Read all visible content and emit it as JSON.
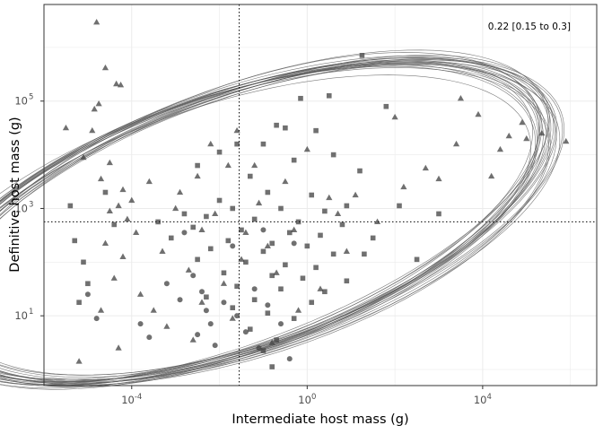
{
  "chart_data": {
    "type": "scatter",
    "title": "",
    "xlabel": "Intermediate host mass (g)",
    "ylabel": "Definitive host mass (g)",
    "x_scale": "log10",
    "y_scale": "log10",
    "xlim_log10": [
      -6.0,
      6.6
    ],
    "ylim_log10": [
      -0.3,
      6.8
    ],
    "x_ticks": [
      {
        "log10": -4,
        "base": "10",
        "exp": "-4"
      },
      {
        "log10": 0,
        "base": "10",
        "exp": "0"
      },
      {
        "log10": 4,
        "base": "10",
        "exp": "4"
      }
    ],
    "y_ticks": [
      {
        "log10": 1,
        "base": "10",
        "exp": "1"
      },
      {
        "log10": 3,
        "base": "10",
        "exp": "3"
      },
      {
        "log10": 5,
        "base": "10",
        "exp": "5"
      }
    ],
    "grid": true,
    "annotation": "0.22 [0.15 to 0.3]",
    "annotation_position": "top-right",
    "ref_lines": {
      "x_log10": -1.55,
      "y_log10": 2.75,
      "style": "dotted"
    },
    "marker_colors": {
      "points": "#404040",
      "ellipses": "#595959",
      "axis_text": "#4d4d4d",
      "grid": "#ebebeb"
    },
    "shapes": [
      "triangle",
      "square",
      "circle"
    ],
    "ellipses": {
      "center_log10": [
        -1.55,
        2.75
      ],
      "semi_axis_a_log10": 7.25,
      "semi_axis_b_log10": 2.42,
      "angle_deg": 15,
      "count": 24
    },
    "points_summary": {
      "triangle": [
        [
          -4.8,
          6.47
        ],
        [
          -4.6,
          5.62
        ],
        [
          -4.35,
          5.32
        ],
        [
          -4.25,
          5.3
        ],
        [
          -4.75,
          4.95
        ],
        [
          -4.85,
          4.85
        ],
        [
          -5.5,
          4.5
        ],
        [
          -4.9,
          4.45
        ],
        [
          -5.1,
          3.95
        ],
        [
          -4.5,
          3.85
        ],
        [
          -4.7,
          3.55
        ],
        [
          -4.2,
          3.35
        ],
        [
          -4.0,
          3.15
        ],
        [
          -4.3,
          3.05
        ],
        [
          -4.5,
          2.95
        ],
        [
          -4.1,
          2.8
        ],
        [
          -3.9,
          2.55
        ],
        [
          -4.6,
          2.35
        ],
        [
          -4.2,
          2.1
        ],
        [
          -4.4,
          1.7
        ],
        [
          -3.8,
          1.4
        ],
        [
          -4.7,
          1.1
        ],
        [
          -4.3,
          0.4
        ],
        [
          -5.2,
          0.15
        ],
        [
          -3.5,
          1.1
        ],
        [
          -3.2,
          0.8
        ],
        [
          -2.6,
          0.55
        ],
        [
          -2.4,
          1.25
        ],
        [
          -1.7,
          0.95
        ],
        [
          -0.8,
          0.5
        ],
        [
          -0.2,
          1.1
        ],
        [
          0.3,
          1.5
        ],
        [
          0.9,
          2.2
        ],
        [
          1.6,
          2.75
        ],
        [
          2.2,
          3.4
        ],
        [
          3.0,
          3.55
        ],
        [
          3.4,
          4.2
        ],
        [
          2.0,
          4.7
        ],
        [
          2.7,
          3.75
        ],
        [
          3.9,
          4.75
        ],
        [
          4.4,
          4.1
        ],
        [
          5.0,
          4.3
        ],
        [
          5.35,
          4.4
        ],
        [
          5.9,
          4.25
        ],
        [
          4.6,
          4.35
        ],
        [
          4.9,
          4.6
        ],
        [
          3.5,
          5.05
        ],
        [
          4.2,
          3.6
        ],
        [
          -1.2,
          3.8
        ],
        [
          -0.5,
          3.5
        ],
        [
          0.5,
          3.2
        ],
        [
          0.0,
          4.1
        ],
        [
          -2.2,
          4.2
        ],
        [
          -1.6,
          4.45
        ],
        [
          -2.9,
          3.3
        ],
        [
          -2.1,
          2.9
        ],
        [
          -1.4,
          2.55
        ],
        [
          -0.9,
          2.3
        ],
        [
          -3.3,
          2.2
        ],
        [
          -2.7,
          1.85
        ],
        [
          -1.9,
          1.6
        ],
        [
          -1.5,
          2.05
        ],
        [
          -0.3,
          2.6
        ],
        [
          0.7,
          2.9
        ],
        [
          1.1,
          3.25
        ],
        [
          -3.0,
          3.0
        ],
        [
          -2.5,
          3.6
        ],
        [
          -1.1,
          3.1
        ],
        [
          -0.7,
          1.8
        ],
        [
          -2.4,
          2.6
        ],
        [
          -3.6,
          3.5
        ],
        [
          -1.8,
          3.8
        ]
      ],
      "square": [
        [
          1.25,
          5.85
        ],
        [
          -0.15,
          5.05
        ],
        [
          0.5,
          5.1
        ],
        [
          1.8,
          4.9
        ],
        [
          -0.7,
          4.55
        ],
        [
          -0.5,
          4.5
        ],
        [
          0.2,
          4.45
        ],
        [
          -1.0,
          4.2
        ],
        [
          0.6,
          4.0
        ],
        [
          -0.3,
          3.9
        ],
        [
          1.2,
          3.7
        ],
        [
          -1.3,
          3.6
        ],
        [
          -0.9,
          3.3
        ],
        [
          0.1,
          3.25
        ],
        [
          -2.0,
          3.15
        ],
        [
          -1.7,
          3.0
        ],
        [
          -0.6,
          3.0
        ],
        [
          0.4,
          2.95
        ],
        [
          -2.8,
          2.9
        ],
        [
          -2.3,
          2.85
        ],
        [
          -1.2,
          2.8
        ],
        [
          -0.2,
          2.75
        ],
        [
          0.8,
          2.7
        ],
        [
          -2.6,
          2.65
        ],
        [
          -1.5,
          2.6
        ],
        [
          -0.4,
          2.55
        ],
        [
          0.3,
          2.5
        ],
        [
          -3.1,
          2.45
        ],
        [
          -1.8,
          2.4
        ],
        [
          -0.8,
          2.35
        ],
        [
          0.0,
          2.3
        ],
        [
          -2.2,
          2.25
        ],
        [
          -1.0,
          2.2
        ],
        [
          0.6,
          2.15
        ],
        [
          -2.5,
          2.05
        ],
        [
          -1.4,
          2.0
        ],
        [
          -0.5,
          1.95
        ],
        [
          0.2,
          1.9
        ],
        [
          -1.9,
          1.8
        ],
        [
          -0.8,
          1.75
        ],
        [
          -0.1,
          1.7
        ],
        [
          0.9,
          1.65
        ],
        [
          -1.6,
          1.55
        ],
        [
          -0.6,
          1.5
        ],
        [
          0.4,
          1.45
        ],
        [
          -2.3,
          1.35
        ],
        [
          -1.2,
          1.3
        ],
        [
          0.1,
          1.25
        ],
        [
          -1.7,
          1.15
        ],
        [
          -0.9,
          1.05
        ],
        [
          -0.3,
          0.95
        ],
        [
          -1.3,
          0.75
        ],
        [
          -0.7,
          0.55
        ],
        [
          -1.0,
          0.35
        ],
        [
          -0.8,
          0.05
        ],
        [
          -5.4,
          3.05
        ],
        [
          -5.3,
          2.4
        ],
        [
          -5.1,
          2.0
        ],
        [
          -5.0,
          1.6
        ],
        [
          -5.2,
          1.25
        ],
        [
          -4.4,
          2.7
        ],
        [
          -4.6,
          3.3
        ],
        [
          -3.4,
          2.75
        ],
        [
          -2.0,
          4.05
        ],
        [
          -1.6,
          4.2
        ],
        [
          -2.5,
          3.8
        ],
        [
          0.9,
          3.05
        ],
        [
          1.5,
          2.45
        ],
        [
          2.5,
          2.05
        ],
        [
          3.0,
          2.9
        ],
        [
          2.1,
          3.05
        ],
        [
          1.3,
          2.15
        ]
      ],
      "circle": [
        [
          -2.6,
          1.75
        ],
        [
          -2.4,
          1.45
        ],
        [
          -2.3,
          1.1
        ],
        [
          -2.2,
          0.85
        ],
        [
          -2.5,
          0.65
        ],
        [
          -2.1,
          0.45
        ],
        [
          -1.9,
          1.25
        ],
        [
          -1.6,
          1.0
        ],
        [
          -1.4,
          0.7
        ],
        [
          -1.2,
          1.5
        ],
        [
          -0.9,
          1.2
        ],
        [
          -0.6,
          0.85
        ],
        [
          -3.8,
          0.85
        ],
        [
          -3.6,
          0.6
        ],
        [
          -2.8,
          2.55
        ],
        [
          -1.7,
          2.3
        ],
        [
          -1.0,
          2.6
        ],
        [
          -0.3,
          2.35
        ],
        [
          -4.8,
          0.95
        ],
        [
          -5.0,
          1.4
        ],
        [
          -3.2,
          1.6
        ],
        [
          -2.9,
          1.3
        ],
        [
          -1.1,
          0.4
        ],
        [
          -0.4,
          0.2
        ]
      ]
    }
  }
}
